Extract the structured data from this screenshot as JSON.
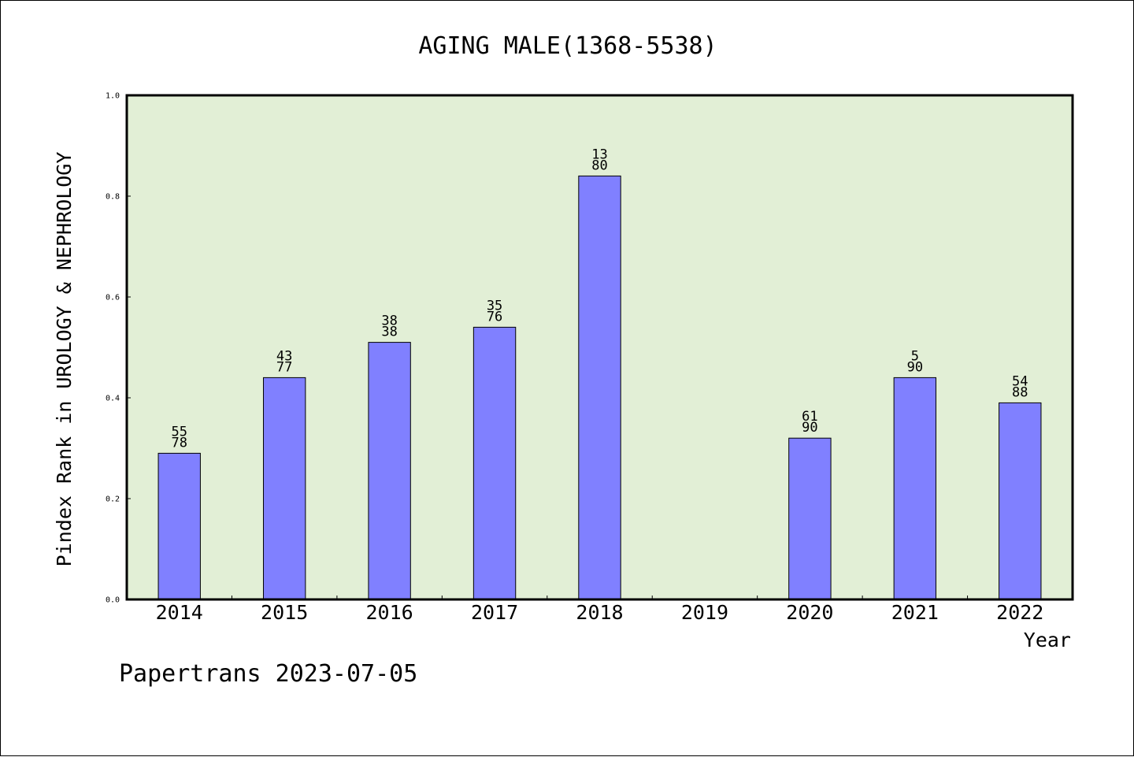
{
  "chart_data": {
    "type": "bar",
    "title": "AGING MALE(1368-5538)",
    "xlabel": "Year",
    "ylabel": "Pindex Rank in UROLOGY & NEPHROLOGY",
    "ylim": [
      0,
      1.0
    ],
    "yticks": [
      "0.0",
      "0.2",
      "0.4",
      "0.6",
      "0.8",
      "1.0"
    ],
    "categories": [
      "2014",
      "2015",
      "2016",
      "2017",
      "2018",
      "2019",
      "2020",
      "2021",
      "2022"
    ],
    "values": [
      0.29,
      0.44,
      0.51,
      0.54,
      0.84,
      null,
      0.32,
      0.44,
      0.39
    ],
    "label_top": [
      "55",
      "43",
      "38",
      "35",
      "13",
      "",
      "61",
      "5",
      "54"
    ],
    "label_bottom": [
      "78",
      "77",
      "38",
      "76",
      "80",
      "",
      "90",
      "90",
      "88"
    ],
    "grid": false,
    "colors": {
      "plot_bg": "#e2efd6",
      "bar": "#8080ff"
    }
  },
  "footer": "Papertrans 2023-07-05"
}
